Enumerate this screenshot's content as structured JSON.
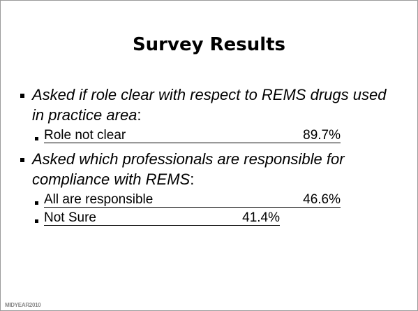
{
  "title": "Survey Results",
  "bullets": [
    {
      "text": "Asked if role clear with respect to REMS drugs used in practice area",
      "end": ":",
      "items": [
        {
          "label": "Role not clear",
          "value": "89.7%"
        }
      ]
    },
    {
      "text": "Asked which professionals are responsible for compliance with REMS",
      "end": ":",
      "items": [
        {
          "label": "All are responsible",
          "value": "46.6%"
        },
        {
          "label": "Not Sure",
          "value": "41.4%"
        }
      ]
    }
  ],
  "logo": "MIDYEAR2010"
}
